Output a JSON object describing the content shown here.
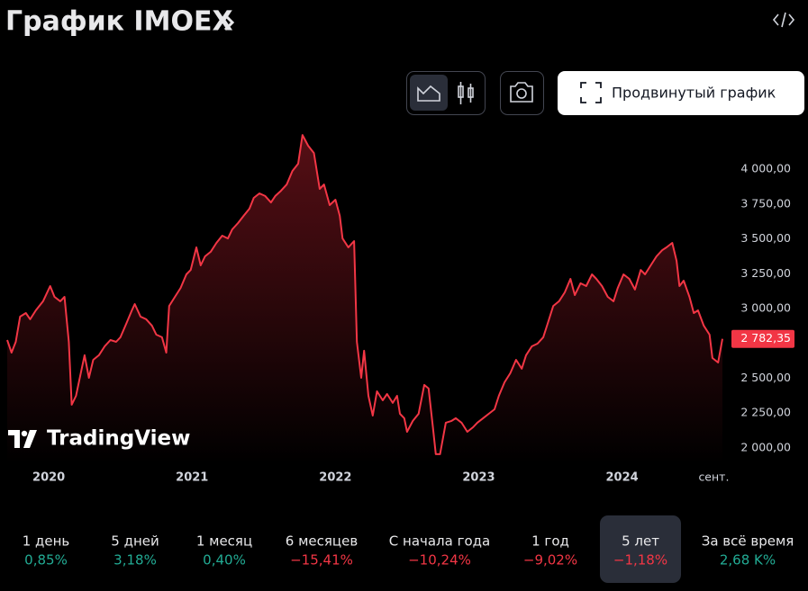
{
  "header": {
    "title": "График IMOEX"
  },
  "toolbar": {
    "advanced_button": "Продвинутый график"
  },
  "branding": {
    "logo_text": "TradingView"
  },
  "chart_data": {
    "type": "line",
    "color": "#f23645",
    "x": [
      2019.71,
      2019.74,
      2019.77,
      2019.8,
      2019.84,
      2019.87,
      2019.91,
      2019.96,
      2020.01,
      2020.04,
      2020.08,
      2020.11,
      2020.14,
      2020.16,
      2020.19,
      2020.23,
      2020.25,
      2020.28,
      2020.31,
      2020.35,
      2020.39,
      2020.43,
      2020.47,
      2020.5,
      2020.54,
      2020.58,
      2020.6,
      2020.64,
      2020.68,
      2020.72,
      2020.75,
      2020.79,
      2020.82,
      2020.84,
      2020.88,
      2020.92,
      2020.96,
      2020.99,
      2021.03,
      2021.06,
      2021.09,
      2021.13,
      2021.17,
      2021.21,
      2021.25,
      2021.28,
      2021.32,
      2021.36,
      2021.4,
      2021.43,
      2021.47,
      2021.51,
      2021.55,
      2021.58,
      2021.62,
      2021.66,
      2021.7,
      2021.74,
      2021.77,
      2021.81,
      2021.85,
      2021.89,
      2021.92,
      2021.96,
      2022.0,
      2022.03,
      2022.05,
      2022.09,
      2022.13,
      2022.15,
      2022.18,
      2022.2,
      2022.23,
      2022.26,
      2022.29,
      2022.33,
      2022.36,
      2022.4,
      2022.43,
      2022.45,
      2022.48,
      2022.5,
      2022.54,
      2022.58,
      2022.62,
      2022.65,
      2022.68,
      2022.7,
      2022.73,
      2022.77,
      2022.81,
      2022.84,
      2022.88,
      2022.92,
      2022.96,
      2022.99,
      2023.03,
      2023.07,
      2023.11,
      2023.14,
      2023.18,
      2023.22,
      2023.26,
      2023.3,
      2023.33,
      2023.37,
      2023.41,
      2023.45,
      2023.48,
      2023.52,
      2023.56,
      2023.6,
      2023.64,
      2023.67,
      2023.71,
      2023.75,
      2023.79,
      2023.82,
      2023.86,
      2023.9,
      2023.94,
      2023.97,
      2024.01,
      2024.05,
      2024.09,
      2024.13,
      2024.16,
      2024.2,
      2024.24,
      2024.28,
      2024.31,
      2024.35,
      2024.38,
      2024.4,
      2024.43,
      2024.47,
      2024.5,
      2024.53,
      2024.57,
      2024.61,
      2024.63,
      2024.67,
      2024.7
    ],
    "values": [
      2774,
      2684,
      2761,
      2942,
      2968,
      2923,
      2987,
      3052,
      3161,
      3084,
      3052,
      3084,
      2761,
      2310,
      2374,
      2568,
      2665,
      2503,
      2632,
      2665,
      2729,
      2774,
      2761,
      2794,
      2890,
      2987,
      3032,
      2942,
      2923,
      2877,
      2813,
      2794,
      2684,
      3019,
      3084,
      3148,
      3245,
      3277,
      3439,
      3310,
      3374,
      3407,
      3471,
      3523,
      3503,
      3568,
      3613,
      3665,
      3716,
      3794,
      3826,
      3807,
      3761,
      3807,
      3845,
      3890,
      3987,
      4039,
      4245,
      4168,
      4116,
      3858,
      3890,
      3742,
      3781,
      3665,
      3503,
      3439,
      3484,
      2761,
      2503,
      2697,
      2374,
      2232,
      2406,
      2342,
      2387,
      2323,
      2374,
      2245,
      2213,
      2116,
      2194,
      2245,
      2452,
      2426,
      2148,
      1955,
      1955,
      2181,
      2194,
      2213,
      2181,
      2116,
      2148,
      2181,
      2213,
      2245,
      2277,
      2374,
      2471,
      2536,
      2632,
      2568,
      2665,
      2729,
      2748,
      2794,
      2890,
      3019,
      3052,
      3116,
      3213,
      3097,
      3181,
      3161,
      3245,
      3213,
      3161,
      3084,
      3052,
      3148,
      3245,
      3213,
      3136,
      3277,
      3245,
      3310,
      3374,
      3419,
      3439,
      3471,
      3342,
      3161,
      3200,
      3084,
      2968,
      2987,
      2877,
      2813,
      2645,
      2613,
      2782.35
    ],
    "last_value": {
      "value": 2782.35,
      "label": "2 782,35"
    },
    "xlim": [
      2019.71,
      2024.7
    ],
    "ylim": [
      1890,
      4310
    ],
    "xticks": [
      2020,
      2021,
      2022,
      2023,
      2024,
      {
        "value": 2024.64,
        "label": "сент."
      }
    ],
    "yticks": [
      {
        "value": 2000,
        "label": "2 000,00"
      },
      {
        "value": 2250,
        "label": "2 250,00"
      },
      {
        "value": 2500,
        "label": "2 500,00"
      },
      {
        "value": 3000,
        "label": "3 000,00"
      },
      {
        "value": 3250,
        "label": "3 250,00"
      },
      {
        "value": 3500,
        "label": "3 500,00"
      },
      {
        "value": 3750,
        "label": "3 750,00"
      },
      {
        "value": 4000,
        "label": "4 000,00"
      }
    ],
    "grid": false
  },
  "periods": {
    "selected": 6,
    "items": [
      {
        "label": "1 день",
        "change": "0,85%",
        "color": "#22ab94"
      },
      {
        "label": "5 дней",
        "change": "3,18%",
        "color": "#22ab94"
      },
      {
        "label": "1 месяц",
        "change": "0,40%",
        "color": "#22ab94"
      },
      {
        "label": "6 месяцев",
        "change": "−15,41%",
        "color": "#f23645"
      },
      {
        "label": "С начала года",
        "change": "−10,24%",
        "color": "#f23645"
      },
      {
        "label": "1 год",
        "change": "−9,02%",
        "color": "#f23645"
      },
      {
        "label": "5 лет",
        "change": "−1,18%",
        "color": "#f23645"
      },
      {
        "label": "За всё время",
        "change": "2,68 K%",
        "color": "#22ab94"
      }
    ]
  }
}
